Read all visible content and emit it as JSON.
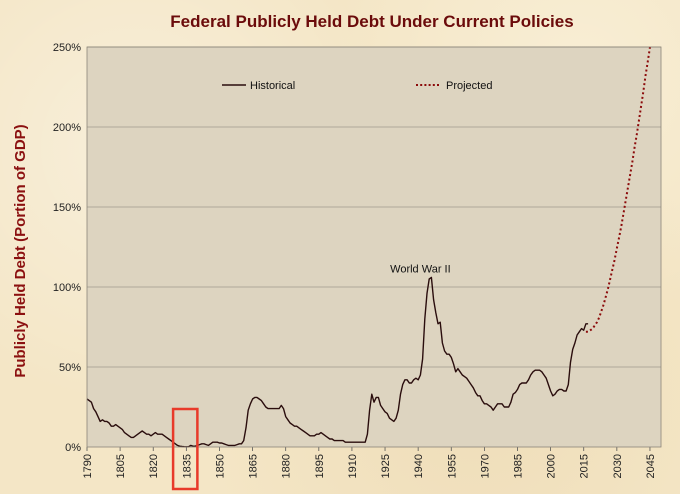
{
  "chart_data": {
    "type": "line",
    "title": "Federal Publicly Held Debt Under Current Policies",
    "xlabel": "",
    "ylabel": "Publicly Held Debt (Portion of GDP)",
    "xlim": [
      1790,
      2050
    ],
    "ylim": [
      0,
      250
    ],
    "x_ticks": [
      "1790",
      "1805",
      "1820",
      "1835",
      "1850",
      "1865",
      "1880",
      "1895",
      "1910",
      "1925",
      "1940",
      "1955",
      "1970",
      "1985",
      "2000",
      "2015",
      "2030",
      "2045"
    ],
    "y_ticks": [
      "0%",
      "50%",
      "100%",
      "150%",
      "200%",
      "250%"
    ],
    "grid": true,
    "legend_position": "top",
    "annotation": {
      "text": "World War II",
      "x": 1946,
      "y": 109
    },
    "highlight": {
      "x_from": 1829,
      "x_to": 1840,
      "color": "#e83a2a"
    },
    "colors": {
      "historical": "#2a0d0d",
      "projected": "#8b0a0a",
      "plot_bg": "#ddd4c0",
      "grid": "#a09a8e"
    },
    "series": [
      {
        "name": "Historical",
        "style": "solid",
        "points": [
          [
            1790,
            30
          ],
          [
            1791,
            29
          ],
          [
            1792,
            28
          ],
          [
            1793,
            24
          ],
          [
            1794,
            22
          ],
          [
            1795,
            19
          ],
          [
            1796,
            16
          ],
          [
            1797,
            17
          ],
          [
            1798,
            16
          ],
          [
            1799,
            16
          ],
          [
            1800,
            15
          ],
          [
            1801,
            13
          ],
          [
            1802,
            13
          ],
          [
            1803,
            14
          ],
          [
            1804,
            13
          ],
          [
            1805,
            12
          ],
          [
            1806,
            11
          ],
          [
            1807,
            9
          ],
          [
            1808,
            8
          ],
          [
            1809,
            7
          ],
          [
            1810,
            6
          ],
          [
            1811,
            6
          ],
          [
            1812,
            7
          ],
          [
            1813,
            8
          ],
          [
            1814,
            9
          ],
          [
            1815,
            10
          ],
          [
            1816,
            9
          ],
          [
            1817,
            8
          ],
          [
            1818,
            8
          ],
          [
            1819,
            7
          ],
          [
            1820,
            8
          ],
          [
            1821,
            9
          ],
          [
            1822,
            8
          ],
          [
            1823,
            8
          ],
          [
            1824,
            8
          ],
          [
            1825,
            7
          ],
          [
            1826,
            6
          ],
          [
            1827,
            5
          ],
          [
            1828,
            4
          ],
          [
            1829,
            3
          ],
          [
            1830,
            2
          ],
          [
            1831,
            1
          ],
          [
            1832,
            0.5
          ],
          [
            1833,
            0.3
          ],
          [
            1834,
            0.2
          ],
          [
            1835,
            0.1
          ],
          [
            1836,
            0.2
          ],
          [
            1837,
            1
          ],
          [
            1838,
            0.5
          ],
          [
            1839,
            0.5
          ],
          [
            1840,
            1
          ],
          [
            1841,
            1.5
          ],
          [
            1842,
            2
          ],
          [
            1843,
            2
          ],
          [
            1844,
            1.5
          ],
          [
            1845,
            1
          ],
          [
            1846,
            2
          ],
          [
            1847,
            3
          ],
          [
            1848,
            3
          ],
          [
            1849,
            3
          ],
          [
            1850,
            2.5
          ],
          [
            1851,
            2.5
          ],
          [
            1852,
            2
          ],
          [
            1853,
            1.5
          ],
          [
            1854,
            1
          ],
          [
            1855,
            1
          ],
          [
            1856,
            1
          ],
          [
            1857,
            1
          ],
          [
            1858,
            1.5
          ],
          [
            1859,
            2
          ],
          [
            1860,
            2
          ],
          [
            1861,
            4
          ],
          [
            1862,
            12
          ],
          [
            1863,
            23
          ],
          [
            1864,
            27
          ],
          [
            1865,
            30
          ],
          [
            1866,
            31
          ],
          [
            1867,
            31
          ],
          [
            1868,
            30
          ],
          [
            1869,
            29
          ],
          [
            1870,
            27
          ],
          [
            1871,
            25
          ],
          [
            1872,
            24
          ],
          [
            1873,
            24
          ],
          [
            1874,
            24
          ],
          [
            1875,
            24
          ],
          [
            1876,
            24
          ],
          [
            1877,
            24
          ],
          [
            1878,
            26
          ],
          [
            1879,
            24
          ],
          [
            1880,
            19
          ],
          [
            1881,
            17
          ],
          [
            1882,
            15
          ],
          [
            1883,
            14
          ],
          [
            1884,
            13
          ],
          [
            1885,
            13
          ],
          [
            1886,
            12
          ],
          [
            1887,
            11
          ],
          [
            1888,
            10
          ],
          [
            1889,
            9
          ],
          [
            1890,
            8
          ],
          [
            1891,
            7
          ],
          [
            1892,
            7
          ],
          [
            1893,
            7
          ],
          [
            1894,
            8
          ],
          [
            1895,
            8
          ],
          [
            1896,
            9
          ],
          [
            1897,
            8
          ],
          [
            1898,
            7
          ],
          [
            1899,
            6
          ],
          [
            1900,
            5
          ],
          [
            1901,
            5
          ],
          [
            1902,
            4
          ],
          [
            1903,
            4
          ],
          [
            1904,
            4
          ],
          [
            1905,
            4
          ],
          [
            1906,
            4
          ],
          [
            1907,
            3
          ],
          [
            1908,
            3
          ],
          [
            1909,
            3
          ],
          [
            1910,
            3
          ],
          [
            1911,
            3
          ],
          [
            1912,
            3
          ],
          [
            1913,
            3
          ],
          [
            1914,
            3
          ],
          [
            1915,
            3
          ],
          [
            1916,
            3
          ],
          [
            1917,
            8
          ],
          [
            1918,
            23
          ],
          [
            1919,
            33
          ],
          [
            1920,
            28
          ],
          [
            1921,
            31
          ],
          [
            1922,
            31
          ],
          [
            1923,
            26
          ],
          [
            1924,
            24
          ],
          [
            1925,
            22
          ],
          [
            1926,
            21
          ],
          [
            1927,
            18
          ],
          [
            1928,
            17
          ],
          [
            1929,
            16
          ],
          [
            1930,
            18
          ],
          [
            1931,
            23
          ],
          [
            1932,
            33
          ],
          [
            1933,
            39
          ],
          [
            1934,
            42
          ],
          [
            1935,
            42
          ],
          [
            1936,
            40
          ],
          [
            1937,
            40
          ],
          [
            1938,
            42
          ],
          [
            1939,
            43
          ],
          [
            1940,
            42
          ],
          [
            1941,
            45
          ],
          [
            1942,
            55
          ],
          [
            1943,
            80
          ],
          [
            1944,
            96
          ],
          [
            1945,
            105
          ],
          [
            1946,
            106
          ],
          [
            1947,
            92
          ],
          [
            1948,
            84
          ],
          [
            1949,
            77
          ],
          [
            1950,
            78
          ],
          [
            1951,
            65
          ],
          [
            1952,
            60
          ],
          [
            1953,
            58
          ],
          [
            1954,
            58
          ],
          [
            1955,
            56
          ],
          [
            1956,
            52
          ],
          [
            1957,
            47
          ],
          [
            1958,
            49
          ],
          [
            1959,
            47
          ],
          [
            1960,
            45
          ],
          [
            1961,
            44
          ],
          [
            1962,
            43
          ],
          [
            1963,
            41
          ],
          [
            1964,
            39
          ],
          [
            1965,
            37
          ],
          [
            1966,
            34
          ],
          [
            1967,
            32
          ],
          [
            1968,
            32
          ],
          [
            1969,
            29
          ],
          [
            1970,
            27
          ],
          [
            1971,
            27
          ],
          [
            1972,
            26
          ],
          [
            1973,
            25
          ],
          [
            1974,
            23
          ],
          [
            1975,
            25
          ],
          [
            1976,
            27
          ],
          [
            1977,
            27
          ],
          [
            1978,
            27
          ],
          [
            1979,
            25
          ],
          [
            1980,
            25
          ],
          [
            1981,
            25
          ],
          [
            1982,
            28
          ],
          [
            1983,
            33
          ],
          [
            1984,
            34
          ],
          [
            1985,
            36
          ],
          [
            1986,
            39
          ],
          [
            1987,
            40
          ],
          [
            1988,
            40
          ],
          [
            1989,
            40
          ],
          [
            1990,
            42
          ],
          [
            1991,
            45
          ],
          [
            1992,
            47
          ],
          [
            1993,
            48
          ],
          [
            1994,
            48
          ],
          [
            1995,
            48
          ],
          [
            1996,
            47
          ],
          [
            1997,
            45
          ],
          [
            1998,
            43
          ],
          [
            1999,
            39
          ],
          [
            2000,
            35
          ],
          [
            2001,
            32
          ],
          [
            2002,
            33
          ],
          [
            2003,
            35
          ],
          [
            2004,
            36
          ],
          [
            2005,
            36
          ],
          [
            2006,
            35
          ],
          [
            2007,
            35
          ],
          [
            2008,
            39
          ],
          [
            2009,
            53
          ],
          [
            2010,
            61
          ],
          [
            2011,
            65
          ],
          [
            2012,
            70
          ],
          [
            2013,
            72
          ],
          [
            2014,
            74
          ],
          [
            2015,
            73
          ],
          [
            2016,
            77
          ],
          [
            2017,
            77
          ]
        ]
      },
      {
        "name": "Projected",
        "style": "dotted",
        "points": [
          [
            2016,
            72
          ],
          [
            2017,
            72
          ],
          [
            2018,
            73
          ],
          [
            2019,
            74
          ],
          [
            2020,
            76
          ],
          [
            2021,
            78
          ],
          [
            2022,
            81
          ],
          [
            2023,
            85
          ],
          [
            2024,
            89
          ],
          [
            2025,
            94
          ],
          [
            2026,
            99
          ],
          [
            2027,
            105
          ],
          [
            2028,
            111
          ],
          [
            2029,
            117
          ],
          [
            2030,
            124
          ],
          [
            2031,
            131
          ],
          [
            2032,
            138
          ],
          [
            2033,
            146
          ],
          [
            2034,
            154
          ],
          [
            2035,
            162
          ],
          [
            2036,
            170
          ],
          [
            2037,
            178
          ],
          [
            2038,
            187
          ],
          [
            2039,
            195
          ],
          [
            2040,
            204
          ],
          [
            2041,
            213
          ],
          [
            2042,
            222
          ],
          [
            2043,
            232
          ],
          [
            2044,
            241
          ],
          [
            2045,
            250
          ]
        ]
      }
    ]
  }
}
